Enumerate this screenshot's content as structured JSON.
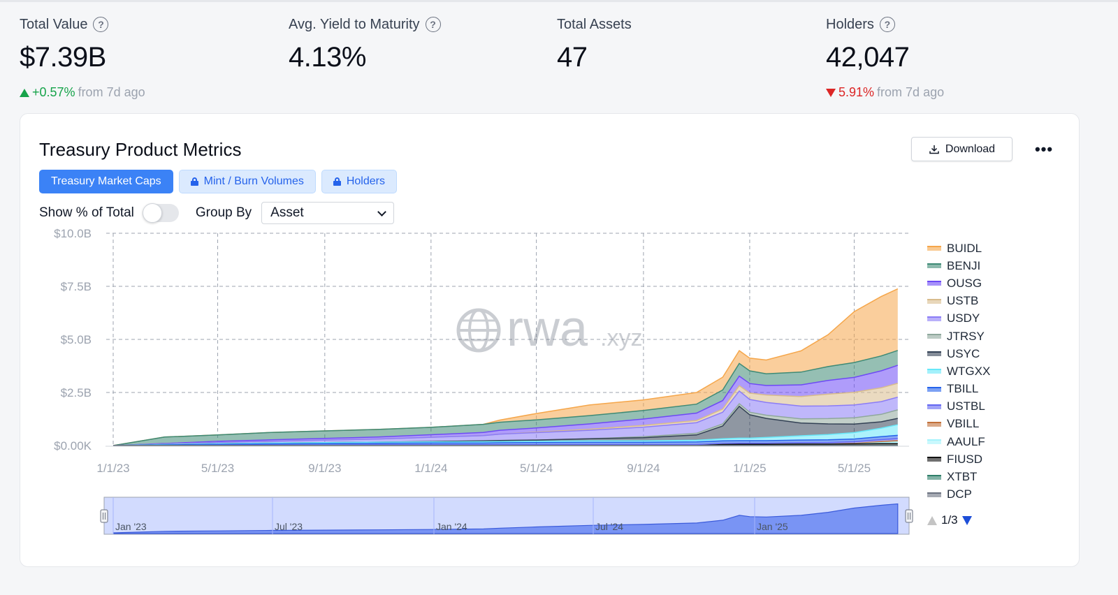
{
  "stats": [
    {
      "label": "Total Value",
      "has_help": true,
      "value": "$7.39B",
      "change": "+0.57%",
      "direction": "up",
      "suffix": "from 7d ago"
    },
    {
      "label": "Avg. Yield to Maturity",
      "has_help": true,
      "value": "4.13%",
      "change": "",
      "direction": "",
      "suffix": ""
    },
    {
      "label": "Total Assets",
      "has_help": false,
      "value": "47",
      "change": "",
      "direction": "",
      "suffix": ""
    },
    {
      "label": "Holders",
      "has_help": true,
      "value": "42,047",
      "change": "5.91%",
      "direction": "down",
      "suffix": "from 7d ago"
    }
  ],
  "card": {
    "title": "Treasury Product Metrics",
    "download_label": "Download",
    "more_label": "•••",
    "tabs": [
      {
        "label": "Treasury Market Caps",
        "active": true,
        "locked": false
      },
      {
        "label": "Mint / Burn Volumes",
        "active": false,
        "locked": true
      },
      {
        "label": "Holders",
        "active": false,
        "locked": true
      }
    ],
    "show_pct_label": "Show % of Total",
    "group_by_label": "Group By",
    "group_by_value": "Asset",
    "watermark_main": "rwa",
    "watermark_suffix": ".xyz",
    "legend_page": "1/3"
  },
  "chart_data": {
    "type": "area",
    "stacked": true,
    "y_ticks": [
      "$0.00K",
      "$2.5B",
      "$5.0B",
      "$7.5B",
      "$10.0B"
    ],
    "ylim": [
      0,
      10
    ],
    "x_ticks": [
      "1/1/23",
      "5/1/23",
      "9/1/23",
      "1/1/24",
      "5/1/24",
      "9/1/24",
      "1/1/25",
      "5/1/25"
    ],
    "x_points": [
      "1/1/23",
      "3/1/23",
      "5/1/23",
      "7/1/23",
      "9/1/23",
      "11/1/23",
      "1/1/24",
      "3/1/24",
      "3/20/24",
      "5/1/24",
      "7/1/24",
      "9/1/24",
      "11/1/24",
      "12/1/24",
      "12/20/24",
      "1/1/25",
      "1/20/25",
      "3/1/25",
      "4/1/25",
      "5/1/25",
      "6/1/25",
      "6/20/25"
    ],
    "series": [
      {
        "name": "DCP",
        "color": "#6b7280",
        "values": [
          0,
          0,
          0,
          0,
          0,
          0,
          0,
          0,
          0,
          0,
          0,
          0,
          0,
          0,
          0,
          0,
          0,
          0,
          0,
          0,
          0,
          0
        ]
      },
      {
        "name": "XTBT",
        "color": "#2f7f6a",
        "values": [
          0,
          0,
          0,
          0,
          0,
          0,
          0,
          0,
          0,
          0,
          0,
          0,
          0,
          0,
          0,
          0,
          0,
          0,
          0,
          0,
          0.01,
          0.01
        ]
      },
      {
        "name": "FIUSD",
        "color": "#111111",
        "values": [
          0,
          0,
          0,
          0,
          0,
          0,
          0,
          0,
          0,
          0,
          0,
          0,
          0,
          0.05,
          0.06,
          0.06,
          0.06,
          0.07,
          0.07,
          0.08,
          0.08,
          0.08
        ]
      },
      {
        "name": "AAULF",
        "color": "#a5f3fc",
        "values": [
          0,
          0,
          0,
          0,
          0,
          0,
          0,
          0,
          0,
          0,
          0,
          0,
          0,
          0,
          0,
          0,
          0,
          0,
          0,
          0,
          0.05,
          0.08
        ]
      },
      {
        "name": "VBILL",
        "color": "#c2703a",
        "values": [
          0,
          0,
          0,
          0,
          0,
          0,
          0,
          0,
          0,
          0,
          0,
          0,
          0,
          0,
          0,
          0,
          0,
          0,
          0,
          0.02,
          0.05,
          0.06
        ]
      },
      {
        "name": "USTBL",
        "color": "#6366f1",
        "values": [
          0,
          0.01,
          0.02,
          0.03,
          0.03,
          0.04,
          0.04,
          0.04,
          0.04,
          0.04,
          0.05,
          0.05,
          0.05,
          0.05,
          0.05,
          0.05,
          0.05,
          0.06,
          0.07,
          0.08,
          0.09,
          0.1
        ]
      },
      {
        "name": "TBILL",
        "color": "#2563eb",
        "values": [
          0,
          0.02,
          0.04,
          0.05,
          0.06,
          0.07,
          0.08,
          0.08,
          0.09,
          0.1,
          0.1,
          0.1,
          0.12,
          0.12,
          0.12,
          0.12,
          0.12,
          0.13,
          0.13,
          0.13,
          0.14,
          0.15
        ]
      },
      {
        "name": "WTGXX",
        "color": "#67e8f9",
        "values": [
          0,
          0.02,
          0.03,
          0.04,
          0.05,
          0.05,
          0.05,
          0.06,
          0.06,
          0.06,
          0.07,
          0.07,
          0.08,
          0.1,
          0.12,
          0.12,
          0.15,
          0.2,
          0.25,
          0.3,
          0.4,
          0.5
        ]
      },
      {
        "name": "USYC",
        "color": "#334155",
        "values": [
          0,
          0,
          0,
          0,
          0,
          0,
          0.02,
          0.04,
          0.05,
          0.06,
          0.1,
          0.15,
          0.25,
          0.6,
          1.5,
          1.1,
          0.9,
          0.6,
          0.5,
          0.4,
          0.3,
          0.3
        ]
      },
      {
        "name": "JTRSY",
        "color": "#8fa89c",
        "values": [
          0,
          0,
          0,
          0,
          0,
          0,
          0,
          0,
          0,
          0,
          0,
          0.05,
          0.08,
          0.1,
          0.12,
          0.12,
          0.15,
          0.2,
          0.25,
          0.3,
          0.35,
          0.4
        ]
      },
      {
        "name": "USDY",
        "color": "#8b7cf6",
        "values": [
          0,
          0.03,
          0.06,
          0.08,
          0.12,
          0.15,
          0.2,
          0.25,
          0.3,
          0.35,
          0.4,
          0.45,
          0.5,
          0.55,
          0.6,
          0.6,
          0.6,
          0.6,
          0.6,
          0.6,
          0.6,
          0.6
        ]
      },
      {
        "name": "USTB",
        "color": "#d8bc8c",
        "values": [
          0,
          0,
          0,
          0,
          0,
          0,
          0,
          0,
          0,
          0.02,
          0.05,
          0.08,
          0.1,
          0.15,
          0.25,
          0.3,
          0.35,
          0.45,
          0.55,
          0.6,
          0.65,
          0.65
        ]
      },
      {
        "name": "OUSG",
        "color": "#6d4af5",
        "values": [
          0,
          0.02,
          0.05,
          0.07,
          0.08,
          0.09,
          0.12,
          0.15,
          0.18,
          0.2,
          0.25,
          0.3,
          0.35,
          0.4,
          0.45,
          0.45,
          0.45,
          0.55,
          0.65,
          0.7,
          0.8,
          0.85
        ]
      },
      {
        "name": "BENJI",
        "color": "#3e8a75",
        "values": [
          0,
          0.3,
          0.3,
          0.35,
          0.35,
          0.36,
          0.35,
          0.38,
          0.38,
          0.38,
          0.39,
          0.4,
          0.42,
          0.5,
          0.6,
          0.6,
          0.55,
          0.6,
          0.65,
          0.7,
          0.7,
          0.7
        ]
      },
      {
        "name": "BUIDL",
        "color": "#f5a64a",
        "values": [
          0,
          0,
          0,
          0,
          0,
          0,
          0,
          0,
          0.1,
          0.3,
          0.5,
          0.5,
          0.55,
          0.6,
          0.6,
          0.6,
          0.65,
          1.0,
          1.5,
          2.4,
          2.8,
          2.9
        ]
      }
    ],
    "legend": [
      "BUIDL",
      "BENJI",
      "OUSG",
      "USTB",
      "USDY",
      "JTRSY",
      "USYC",
      "WTGXX",
      "TBILL",
      "USTBL",
      "VBILL",
      "AAULF",
      "FIUSD",
      "XTBT",
      "DCP"
    ],
    "navigator_labels": [
      "Jan '23",
      "Jul '23",
      "Jan '24",
      "Jul '24",
      "Jan '25"
    ],
    "grid": true,
    "legend_position": "right"
  }
}
